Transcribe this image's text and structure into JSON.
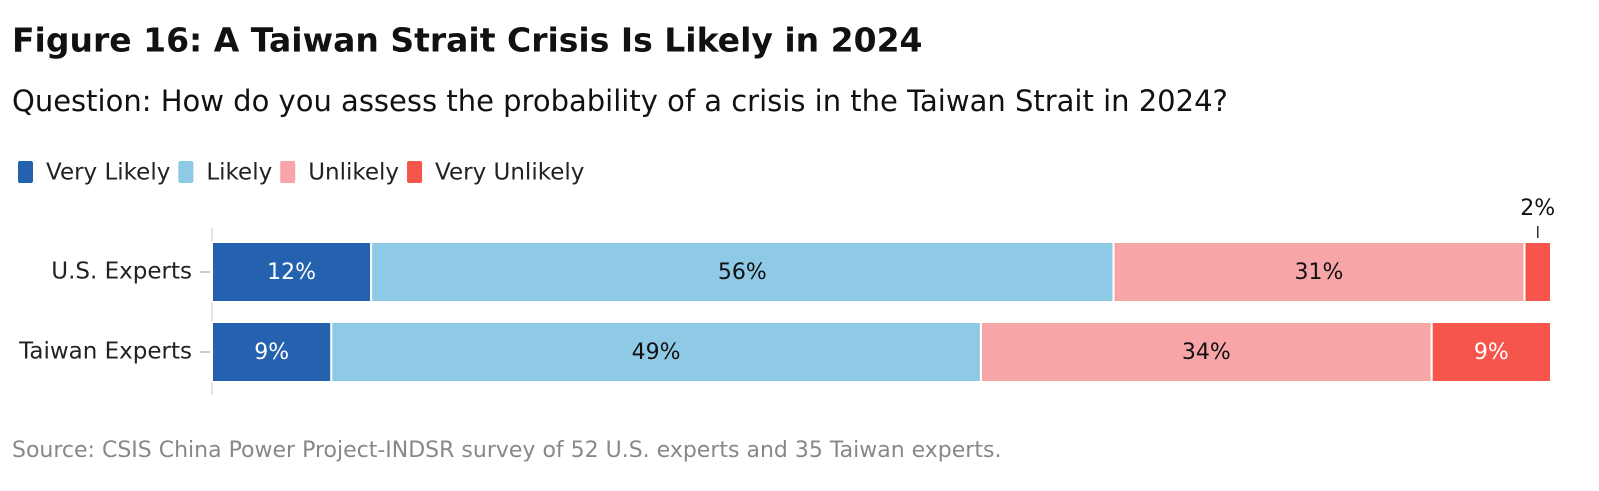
{
  "chart_data": {
    "type": "stacked-bar-horizontal",
    "title": "Figure 16: A Taiwan Strait Crisis Is Likely in 2024",
    "subtitle": "Question: How do you assess the probability of a crisis in the Taiwan Strait in 2024?",
    "categories": [
      "U.S. Experts",
      "Taiwan Experts"
    ],
    "series": [
      {
        "name": "Very Likely",
        "color": "#2462b0",
        "values": [
          12,
          9
        ],
        "value_labels": [
          "12%",
          "9%"
        ]
      },
      {
        "name": "Likely",
        "color": "#8ecae6",
        "values": [
          56,
          49
        ],
        "value_labels": [
          "56%",
          "49%"
        ]
      },
      {
        "name": "Unlikely",
        "color": "#f8a5a8",
        "values": [
          31,
          34
        ],
        "value_labels": [
          "31%",
          "34%"
        ]
      },
      {
        "name": "Very Unlikely",
        "color": "#f5554a",
        "values": [
          2,
          9
        ],
        "value_labels": [
          "2%",
          "9%"
        ]
      }
    ],
    "source": "Source: CSIS China Power Project-INDSR survey of 52 U.S. experts and 35 Taiwan experts."
  }
}
